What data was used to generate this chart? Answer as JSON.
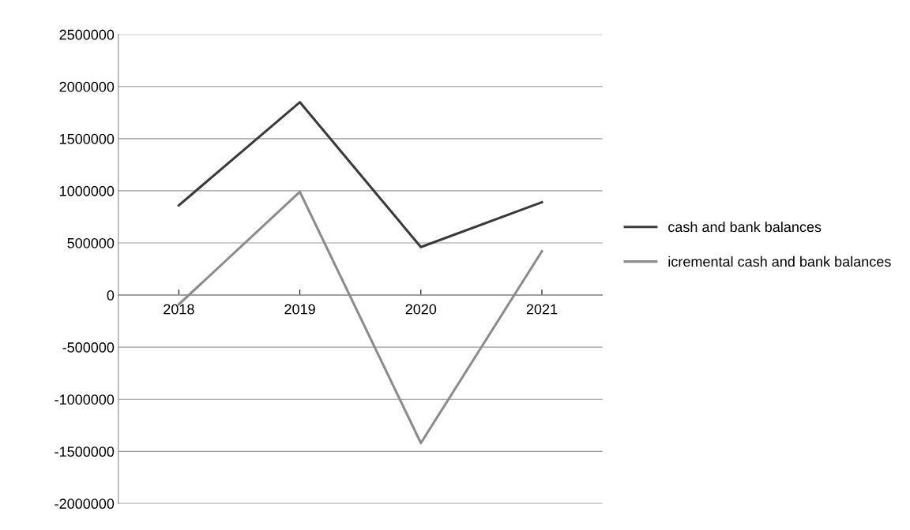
{
  "chart_data": {
    "type": "line",
    "categories": [
      "2018",
      "2019",
      "2020",
      "2021"
    ],
    "series": [
      {
        "name": "cash and bank balances",
        "color": "#3a3a3a",
        "values": [
          860000,
          1850000,
          460000,
          890000
        ]
      },
      {
        "name": "icremental cash and bank balances",
        "color": "#8c8c8c",
        "values": [
          -90000,
          990000,
          -1420000,
          420000
        ]
      }
    ],
    "ylim": [
      -2000000,
      2500000
    ],
    "yticks": [
      -2000000,
      -1500000,
      -1000000,
      -500000,
      0,
      500000,
      1000000,
      1500000,
      2000000,
      2500000
    ],
    "grid": "y",
    "legend": "right",
    "marker": "none",
    "line_style": "solid"
  }
}
